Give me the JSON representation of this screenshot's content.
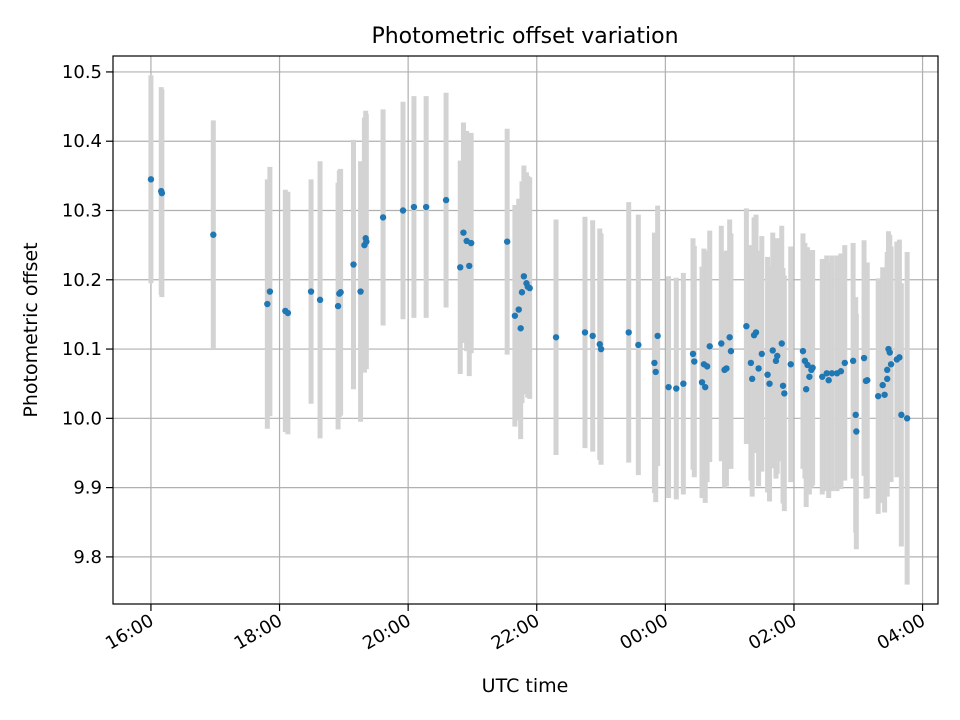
{
  "chart_data": {
    "type": "scatter",
    "title": "Photometric offset variation",
    "xlabel": "UTC time",
    "ylabel": "Photometric offset",
    "x_axis_kind": "time (hours since 16:00 UTC)",
    "x_ticks": [
      {
        "value": 0,
        "label": "16:00"
      },
      {
        "value": 2,
        "label": "18:00"
      },
      {
        "value": 4,
        "label": "20:00"
      },
      {
        "value": 6,
        "label": "22:00"
      },
      {
        "value": 8,
        "label": "00:00"
      },
      {
        "value": 10,
        "label": "02:00"
      },
      {
        "value": 12,
        "label": "04:00"
      }
    ],
    "y_ticks": [
      9.8,
      9.9,
      10.0,
      10.1,
      10.2,
      10.3,
      10.4,
      10.5
    ],
    "xlim": [
      -0.59,
      12.24
    ],
    "ylim": [
      9.732,
      10.523
    ],
    "grid": true,
    "marker_color": "#1f77b4",
    "errorbar_color": "#d3d3d3",
    "points": [
      [
        0.0,
        10.345,
        0.15
      ],
      [
        0.16,
        10.328,
        0.15
      ],
      [
        0.17,
        10.325,
        0.15
      ],
      [
        0.97,
        10.265,
        0.165
      ],
      [
        1.81,
        10.165,
        0.18
      ],
      [
        1.85,
        10.183,
        0.18
      ],
      [
        2.09,
        10.155,
        0.175
      ],
      [
        2.13,
        10.152,
        0.175
      ],
      [
        2.49,
        10.183,
        0.162
      ],
      [
        2.63,
        10.171,
        0.2
      ],
      [
        2.91,
        10.162,
        0.178
      ],
      [
        2.93,
        10.18,
        0.178
      ],
      [
        2.95,
        10.182,
        0.178
      ],
      [
        3.15,
        10.222,
        0.18
      ],
      [
        3.26,
        10.183,
        0.188
      ],
      [
        3.32,
        10.25,
        0.184
      ],
      [
        3.34,
        10.26,
        0.184
      ],
      [
        3.35,
        10.255,
        0.184
      ],
      [
        3.61,
        10.29,
        0.156
      ],
      [
        3.92,
        10.3,
        0.157
      ],
      [
        4.09,
        10.305,
        0.16
      ],
      [
        4.28,
        10.305,
        0.16
      ],
      [
        4.59,
        10.315,
        0.155
      ],
      [
        4.81,
        10.218,
        0.154
      ],
      [
        4.86,
        10.268,
        0.159
      ],
      [
        4.91,
        10.256,
        0.159
      ],
      [
        4.95,
        10.22,
        0.159
      ],
      [
        4.98,
        10.253,
        0.159
      ],
      [
        5.54,
        10.255,
        0.163
      ],
      [
        5.66,
        10.148,
        0.16
      ],
      [
        5.72,
        10.157,
        0.16
      ],
      [
        5.75,
        10.13,
        0.16
      ],
      [
        5.77,
        10.182,
        0.16
      ],
      [
        5.8,
        10.205,
        0.16
      ],
      [
        5.84,
        10.195,
        0.16
      ],
      [
        5.86,
        10.19,
        0.16
      ],
      [
        5.89,
        10.188,
        0.16
      ],
      [
        6.3,
        10.117,
        0.17
      ],
      [
        6.75,
        10.124,
        0.167
      ],
      [
        6.87,
        10.119,
        0.167
      ],
      [
        6.98,
        10.107,
        0.167
      ],
      [
        7.0,
        10.1,
        0.167
      ],
      [
        7.43,
        10.124,
        0.188
      ],
      [
        7.58,
        10.106,
        0.188
      ],
      [
        7.83,
        10.08,
        0.188
      ],
      [
        7.85,
        10.067,
        0.188
      ],
      [
        7.88,
        10.119,
        0.188
      ],
      [
        8.05,
        10.045,
        0.16
      ],
      [
        8.17,
        10.043,
        0.16
      ],
      [
        8.28,
        10.05,
        0.16
      ],
      [
        8.43,
        10.093,
        0.167
      ],
      [
        8.45,
        10.082,
        0.167
      ],
      [
        8.57,
        10.052,
        0.167
      ],
      [
        8.6,
        10.078,
        0.167
      ],
      [
        8.62,
        10.045,
        0.167
      ],
      [
        8.65,
        10.075,
        0.167
      ],
      [
        8.69,
        10.104,
        0.167
      ],
      [
        8.87,
        10.108,
        0.17
      ],
      [
        8.92,
        10.07,
        0.17
      ],
      [
        8.95,
        10.072,
        0.17
      ],
      [
        9.0,
        10.117,
        0.17
      ],
      [
        9.02,
        10.097,
        0.17
      ],
      [
        9.26,
        10.133,
        0.17
      ],
      [
        9.33,
        10.08,
        0.17
      ],
      [
        9.35,
        10.057,
        0.17
      ],
      [
        9.38,
        10.12,
        0.17
      ],
      [
        9.41,
        10.124,
        0.17
      ],
      [
        9.45,
        10.072,
        0.17
      ],
      [
        9.5,
        10.093,
        0.17
      ],
      [
        9.59,
        10.063,
        0.17
      ],
      [
        9.62,
        10.05,
        0.17
      ],
      [
        9.67,
        10.098,
        0.17
      ],
      [
        9.72,
        10.083,
        0.17
      ],
      [
        9.74,
        10.09,
        0.17
      ],
      [
        9.81,
        10.108,
        0.17
      ],
      [
        9.83,
        10.047,
        0.17
      ],
      [
        9.85,
        10.036,
        0.17
      ],
      [
        9.95,
        10.078,
        0.17
      ],
      [
        10.14,
        10.097,
        0.17
      ],
      [
        10.17,
        10.083,
        0.17
      ],
      [
        10.19,
        10.042,
        0.17
      ],
      [
        10.21,
        10.077,
        0.17
      ],
      [
        10.24,
        10.06,
        0.17
      ],
      [
        10.27,
        10.07,
        0.17
      ],
      [
        10.29,
        10.073,
        0.17
      ],
      [
        10.44,
        10.06,
        0.17
      ],
      [
        10.51,
        10.065,
        0.17
      ],
      [
        10.54,
        10.055,
        0.17
      ],
      [
        10.59,
        10.065,
        0.17
      ],
      [
        10.67,
        10.065,
        0.17
      ],
      [
        10.73,
        10.068,
        0.17
      ],
      [
        10.79,
        10.08,
        0.17
      ],
      [
        10.92,
        10.083,
        0.17
      ],
      [
        10.96,
        10.005,
        0.17
      ],
      [
        10.97,
        9.981,
        0.17
      ],
      [
        11.09,
        10.087,
        0.17
      ],
      [
        11.12,
        10.054,
        0.17
      ],
      [
        11.14,
        10.055,
        0.17
      ],
      [
        11.31,
        10.032,
        0.17
      ],
      [
        11.38,
        10.048,
        0.17
      ],
      [
        11.41,
        10.034,
        0.17
      ],
      [
        11.45,
        10.057,
        0.17
      ],
      [
        11.45,
        10.07,
        0.17
      ],
      [
        11.47,
        10.1,
        0.17
      ],
      [
        11.49,
        10.095,
        0.17
      ],
      [
        11.51,
        10.078,
        0.17
      ],
      [
        11.6,
        10.085,
        0.17
      ],
      [
        11.64,
        10.088,
        0.17
      ],
      [
        11.67,
        10.005,
        0.19
      ],
      [
        11.76,
        10.0,
        0.24
      ]
    ]
  }
}
